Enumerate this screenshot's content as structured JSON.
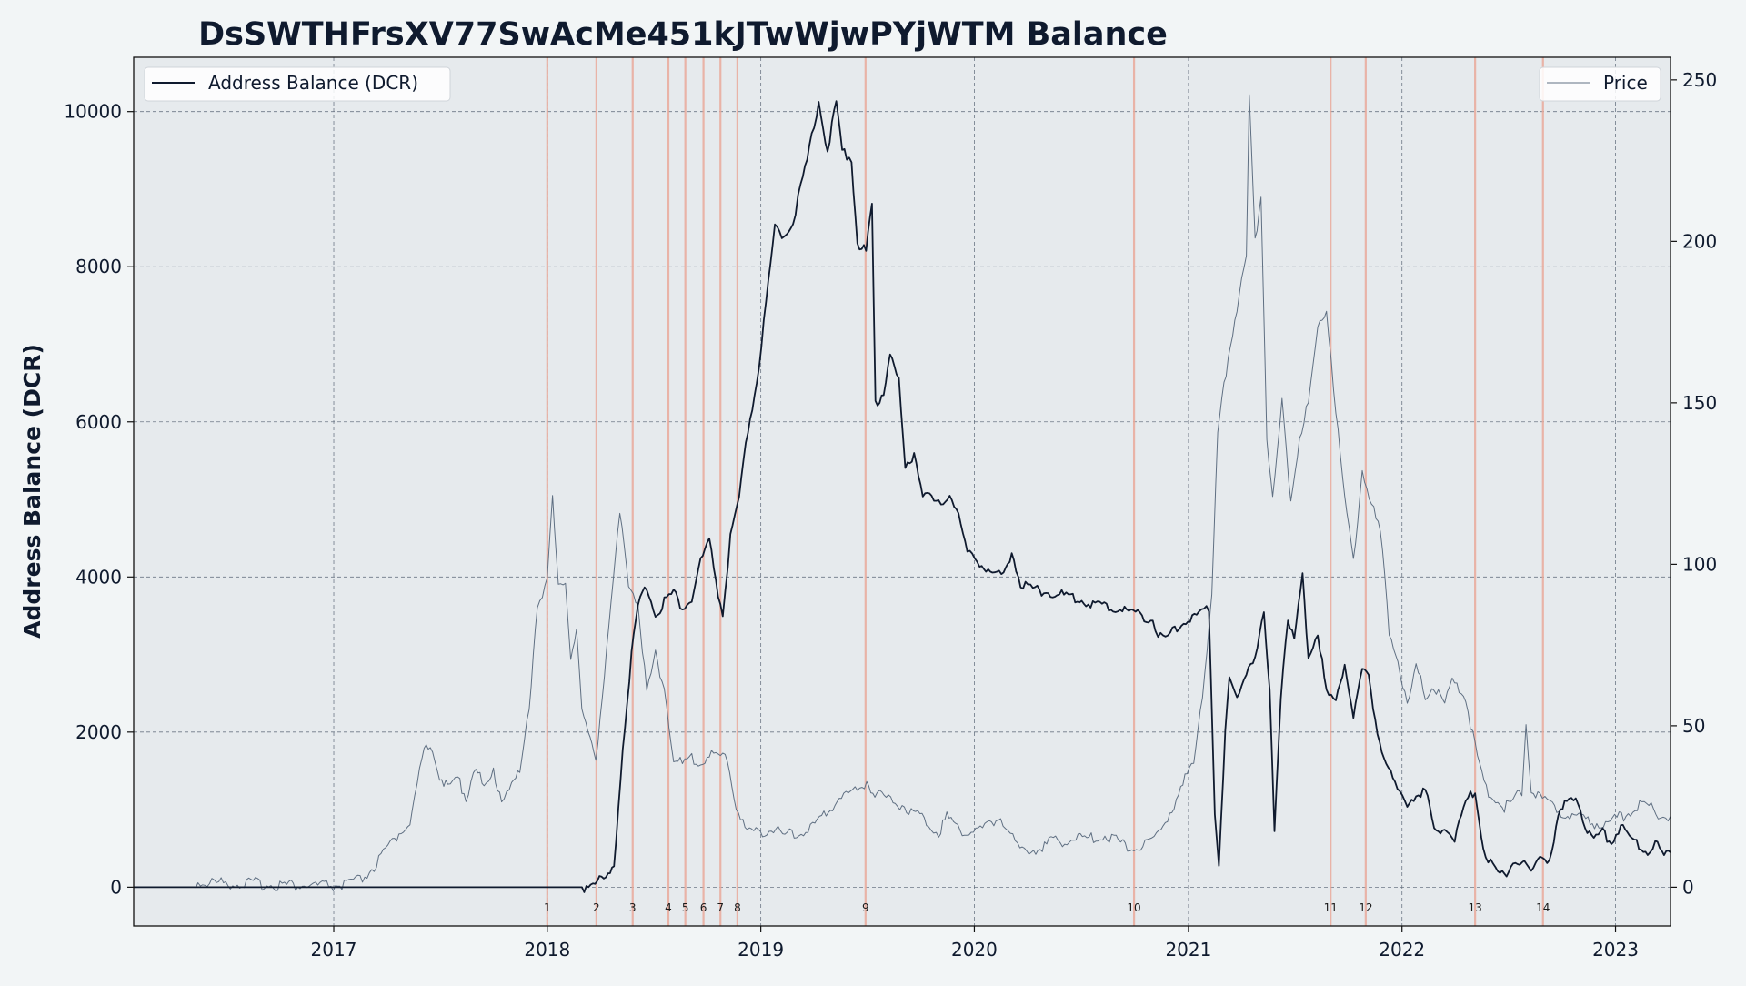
{
  "chart_data": {
    "type": "line",
    "title": "DsSWTHFrsXV77SwAcMe451kJTwWjwPYjWTM Balance",
    "ylabel": "Address Balance (DCR)",
    "y2label": "",
    "xlim": [
      "2016-01-25",
      "2023-04-05"
    ],
    "ylim": [
      -500,
      10700
    ],
    "y2lim": [
      -12,
      257
    ],
    "x_ticks": [
      "2017",
      "2018",
      "2019",
      "2020",
      "2021",
      "2022",
      "2023"
    ],
    "y_ticks": [
      0,
      2000,
      4000,
      6000,
      8000,
      10000
    ],
    "y2_ticks": [
      0,
      50,
      100,
      150,
      200,
      250
    ],
    "grid": true,
    "legends": [
      {
        "label": "Address Balance (DCR)",
        "position": "top-left"
      },
      {
        "label": "Price",
        "position": "top-right"
      }
    ],
    "colors": {
      "balance": "#0f1a2e",
      "price": "#5f6f82",
      "event_line": "#e9a99a",
      "plot_bg": "#e6eaed",
      "page_bg": "#f2f5f6",
      "grid": "#5f6a7a"
    },
    "events": [
      {
        "label": "1",
        "date": "2018-01-01"
      },
      {
        "label": "2",
        "date": "2018-03-26"
      },
      {
        "label": "3",
        "date": "2018-05-27"
      },
      {
        "label": "4",
        "date": "2018-07-27"
      },
      {
        "label": "5",
        "date": "2018-08-25"
      },
      {
        "label": "6",
        "date": "2018-09-25"
      },
      {
        "label": "7",
        "date": "2018-10-24"
      },
      {
        "label": "8",
        "date": "2018-11-22"
      },
      {
        "label": "9",
        "date": "2019-06-29"
      },
      {
        "label": "10",
        "date": "2020-09-30"
      },
      {
        "label": "11",
        "date": "2021-09-01"
      },
      {
        "label": "12",
        "date": "2021-10-31"
      },
      {
        "label": "13",
        "date": "2022-05-06"
      },
      {
        "label": "14",
        "date": "2022-08-30"
      }
    ],
    "series": [
      {
        "name": "Address Balance (DCR)",
        "axis": "left",
        "points": [
          [
            "2016-01-25",
            0
          ],
          [
            "2018-03-05",
            0
          ],
          [
            "2018-03-20",
            80
          ],
          [
            "2018-04-15",
            120
          ],
          [
            "2018-04-25",
            300
          ],
          [
            "2018-05-10",
            1800
          ],
          [
            "2018-05-25",
            3000
          ],
          [
            "2018-06-05",
            3600
          ],
          [
            "2018-06-20",
            3900
          ],
          [
            "2018-07-05",
            3500
          ],
          [
            "2018-07-20",
            3700
          ],
          [
            "2018-08-05",
            3800
          ],
          [
            "2018-08-20",
            3600
          ],
          [
            "2018-09-05",
            3700
          ],
          [
            "2018-09-20",
            4200
          ],
          [
            "2018-10-05",
            4450
          ],
          [
            "2018-10-20",
            3800
          ],
          [
            "2018-10-28",
            3500
          ],
          [
            "2018-11-10",
            4500
          ],
          [
            "2018-11-25",
            5000
          ],
          [
            "2018-12-10",
            5900
          ],
          [
            "2018-12-25",
            6500
          ],
          [
            "2019-01-10",
            7500
          ],
          [
            "2019-01-25",
            8500
          ],
          [
            "2019-02-10",
            8400
          ],
          [
            "2019-02-25",
            8600
          ],
          [
            "2019-03-10",
            9000
          ],
          [
            "2019-03-25",
            9500
          ],
          [
            "2019-04-10",
            10150
          ],
          [
            "2019-04-25",
            9500
          ],
          [
            "2019-05-10",
            10100
          ],
          [
            "2019-05-20",
            9500
          ],
          [
            "2019-06-05",
            9400
          ],
          [
            "2019-06-15",
            8300
          ],
          [
            "2019-06-30",
            8200
          ],
          [
            "2019-07-10",
            8800
          ],
          [
            "2019-07-16",
            6200
          ],
          [
            "2019-07-30",
            6400
          ],
          [
            "2019-08-10",
            6900
          ],
          [
            "2019-08-25",
            6500
          ],
          [
            "2019-09-05",
            5400
          ],
          [
            "2019-09-20",
            5600
          ],
          [
            "2019-10-05",
            5100
          ],
          [
            "2019-10-20",
            5000
          ],
          [
            "2019-11-05",
            4900
          ],
          [
            "2019-11-20",
            5100
          ],
          [
            "2019-12-05",
            4800
          ],
          [
            "2019-12-20",
            4300
          ],
          [
            "2020-01-10",
            4200
          ],
          [
            "2020-02-01",
            4050
          ],
          [
            "2020-02-20",
            4000
          ],
          [
            "2020-03-05",
            4350
          ],
          [
            "2020-03-20",
            3900
          ],
          [
            "2020-04-10",
            3850
          ],
          [
            "2020-05-10",
            3800
          ],
          [
            "2020-06-10",
            3750
          ],
          [
            "2020-07-10",
            3680
          ],
          [
            "2020-08-10",
            3620
          ],
          [
            "2020-09-10",
            3580
          ],
          [
            "2020-10-10",
            3520
          ],
          [
            "2020-11-01",
            3450
          ],
          [
            "2020-11-10",
            3200
          ],
          [
            "2020-12-01",
            3250
          ],
          [
            "2020-12-20",
            3400
          ],
          [
            "2021-01-15",
            3500
          ],
          [
            "2021-02-05",
            3580
          ],
          [
            "2021-02-15",
            1000
          ],
          [
            "2021-02-22",
            300
          ],
          [
            "2021-03-05",
            2000
          ],
          [
            "2021-03-12",
            2700
          ],
          [
            "2021-03-25",
            2400
          ],
          [
            "2021-04-10",
            2800
          ],
          [
            "2021-04-25",
            3000
          ],
          [
            "2021-05-10",
            3500
          ],
          [
            "2021-05-20",
            2500
          ],
          [
            "2021-05-28",
            750
          ],
          [
            "2021-06-08",
            2500
          ],
          [
            "2021-06-20",
            3500
          ],
          [
            "2021-07-01",
            3200
          ],
          [
            "2021-07-15",
            4000
          ],
          [
            "2021-07-25",
            3000
          ],
          [
            "2021-08-10",
            3300
          ],
          [
            "2021-08-25",
            2500
          ],
          [
            "2021-09-10",
            2400
          ],
          [
            "2021-09-25",
            2900
          ],
          [
            "2021-10-10",
            2200
          ],
          [
            "2021-10-25",
            2800
          ],
          [
            "2021-11-05",
            2700
          ],
          [
            "2021-11-20",
            2000
          ],
          [
            "2021-12-05",
            1600
          ],
          [
            "2021-12-20",
            1300
          ],
          [
            "2022-01-10",
            1100
          ],
          [
            "2022-01-25",
            1200
          ],
          [
            "2022-02-10",
            1250
          ],
          [
            "2022-02-25",
            700
          ],
          [
            "2022-03-15",
            800
          ],
          [
            "2022-04-01",
            600
          ],
          [
            "2022-04-20",
            1100
          ],
          [
            "2022-05-06",
            1250
          ],
          [
            "2022-05-20",
            500
          ],
          [
            "2022-06-10",
            200
          ],
          [
            "2022-06-25",
            150
          ],
          [
            "2022-07-10",
            350
          ],
          [
            "2022-07-25",
            300
          ],
          [
            "2022-08-10",
            200
          ],
          [
            "2022-08-25",
            400
          ],
          [
            "2022-09-10",
            350
          ],
          [
            "2022-09-25",
            900
          ],
          [
            "2022-10-10",
            1100
          ],
          [
            "2022-10-25",
            1200
          ],
          [
            "2022-11-10",
            800
          ],
          [
            "2022-11-25",
            600
          ],
          [
            "2022-12-10",
            700
          ],
          [
            "2022-12-25",
            600
          ],
          [
            "2023-01-10",
            800
          ],
          [
            "2023-01-25",
            650
          ],
          [
            "2023-02-10",
            550
          ],
          [
            "2023-02-25",
            450
          ],
          [
            "2023-03-10",
            600
          ],
          [
            "2023-03-25",
            400
          ],
          [
            "2023-04-05",
            450
          ]
        ]
      },
      {
        "name": "Price",
        "axis": "right",
        "points": [
          [
            "2016-05-10",
            1.5
          ],
          [
            "2016-08-01",
            1.2
          ],
          [
            "2016-10-01",
            0.8
          ],
          [
            "2016-12-01",
            0.4
          ],
          [
            "2017-01-15",
            0.5
          ],
          [
            "2017-02-15",
            2
          ],
          [
            "2017-03-15",
            7
          ],
          [
            "2017-04-15",
            15
          ],
          [
            "2017-05-15",
            22
          ],
          [
            "2017-06-01",
            40
          ],
          [
            "2017-06-15",
            45
          ],
          [
            "2017-07-01",
            35
          ],
          [
            "2017-07-15",
            30
          ],
          [
            "2017-08-01",
            34
          ],
          [
            "2017-08-15",
            28
          ],
          [
            "2017-09-01",
            38
          ],
          [
            "2017-09-15",
            30
          ],
          [
            "2017-10-01",
            35
          ],
          [
            "2017-10-15",
            28
          ],
          [
            "2017-11-01",
            32
          ],
          [
            "2017-11-15",
            35
          ],
          [
            "2017-12-01",
            56
          ],
          [
            "2017-12-15",
            88
          ],
          [
            "2018-01-01",
            95
          ],
          [
            "2018-01-10",
            120
          ],
          [
            "2018-01-20",
            92
          ],
          [
            "2018-02-01",
            95
          ],
          [
            "2018-02-10",
            72
          ],
          [
            "2018-02-20",
            80
          ],
          [
            "2018-03-01",
            55
          ],
          [
            "2018-03-15",
            45
          ],
          [
            "2018-03-25",
            40
          ],
          [
            "2018-04-05",
            60
          ],
          [
            "2018-04-20",
            88
          ],
          [
            "2018-05-05",
            115
          ],
          [
            "2018-05-20",
            95
          ],
          [
            "2018-06-05",
            88
          ],
          [
            "2018-06-20",
            60
          ],
          [
            "2018-07-05",
            72
          ],
          [
            "2018-07-20",
            62
          ],
          [
            "2018-08-05",
            40
          ],
          [
            "2018-08-20",
            38
          ],
          [
            "2018-09-05",
            40
          ],
          [
            "2018-09-20",
            38
          ],
          [
            "2018-10-05",
            42
          ],
          [
            "2018-10-20",
            40
          ],
          [
            "2018-11-05",
            40
          ],
          [
            "2018-11-20",
            25
          ],
          [
            "2018-12-05",
            18
          ],
          [
            "2018-12-20",
            17
          ],
          [
            "2019-01-15",
            18
          ],
          [
            "2019-02-15",
            16
          ],
          [
            "2019-03-15",
            17
          ],
          [
            "2019-04-15",
            21
          ],
          [
            "2019-05-15",
            28
          ],
          [
            "2019-06-15",
            30
          ],
          [
            "2019-07-01",
            33
          ],
          [
            "2019-07-15",
            29
          ],
          [
            "2019-08-15",
            27
          ],
          [
            "2019-09-15",
            24
          ],
          [
            "2019-10-15",
            20
          ],
          [
            "2019-11-01",
            17
          ],
          [
            "2019-11-15",
            22
          ],
          [
            "2019-12-15",
            17
          ],
          [
            "2020-01-15",
            18
          ],
          [
            "2020-02-15",
            22
          ],
          [
            "2020-03-15",
            12
          ],
          [
            "2020-04-15",
            12
          ],
          [
            "2020-05-15",
            14
          ],
          [
            "2020-06-15",
            15
          ],
          [
            "2020-07-15",
            15
          ],
          [
            "2020-08-15",
            16
          ],
          [
            "2020-09-15",
            13
          ],
          [
            "2020-10-15",
            12
          ],
          [
            "2020-11-15",
            18
          ],
          [
            "2020-12-15",
            28
          ],
          [
            "2021-01-10",
            40
          ],
          [
            "2021-01-25",
            60
          ],
          [
            "2021-02-10",
            90
          ],
          [
            "2021-02-20",
            140
          ],
          [
            "2021-03-10",
            165
          ],
          [
            "2021-03-25",
            180
          ],
          [
            "2021-04-10",
            195
          ],
          [
            "2021-04-15",
            245
          ],
          [
            "2021-04-25",
            200
          ],
          [
            "2021-05-05",
            215
          ],
          [
            "2021-05-15",
            140
          ],
          [
            "2021-05-25",
            120
          ],
          [
            "2021-06-10",
            150
          ],
          [
            "2021-06-25",
            120
          ],
          [
            "2021-07-10",
            140
          ],
          [
            "2021-07-25",
            150
          ],
          [
            "2021-08-10",
            172
          ],
          [
            "2021-08-25",
            180
          ],
          [
            "2021-09-10",
            148
          ],
          [
            "2021-09-25",
            120
          ],
          [
            "2021-10-10",
            100
          ],
          [
            "2021-10-25",
            130
          ],
          [
            "2021-11-10",
            118
          ],
          [
            "2021-11-25",
            110
          ],
          [
            "2021-12-10",
            80
          ],
          [
            "2021-12-25",
            70
          ],
          [
            "2022-01-10",
            55
          ],
          [
            "2022-01-25",
            68
          ],
          [
            "2022-02-10",
            60
          ],
          [
            "2022-02-25",
            62
          ],
          [
            "2022-03-15",
            57
          ],
          [
            "2022-04-01",
            65
          ],
          [
            "2022-04-20",
            58
          ],
          [
            "2022-05-10",
            40
          ],
          [
            "2022-05-25",
            30
          ],
          [
            "2022-06-10",
            27
          ],
          [
            "2022-06-25",
            25
          ],
          [
            "2022-07-10",
            27
          ],
          [
            "2022-07-25",
            30
          ],
          [
            "2022-08-01",
            52
          ],
          [
            "2022-08-10",
            30
          ],
          [
            "2022-08-25",
            28
          ],
          [
            "2022-09-15",
            25
          ],
          [
            "2022-10-15",
            22
          ],
          [
            "2022-11-15",
            20
          ],
          [
            "2022-12-15",
            20
          ],
          [
            "2023-01-15",
            22
          ],
          [
            "2023-02-15",
            26
          ],
          [
            "2023-03-15",
            23
          ],
          [
            "2023-04-05",
            22
          ]
        ]
      }
    ]
  }
}
